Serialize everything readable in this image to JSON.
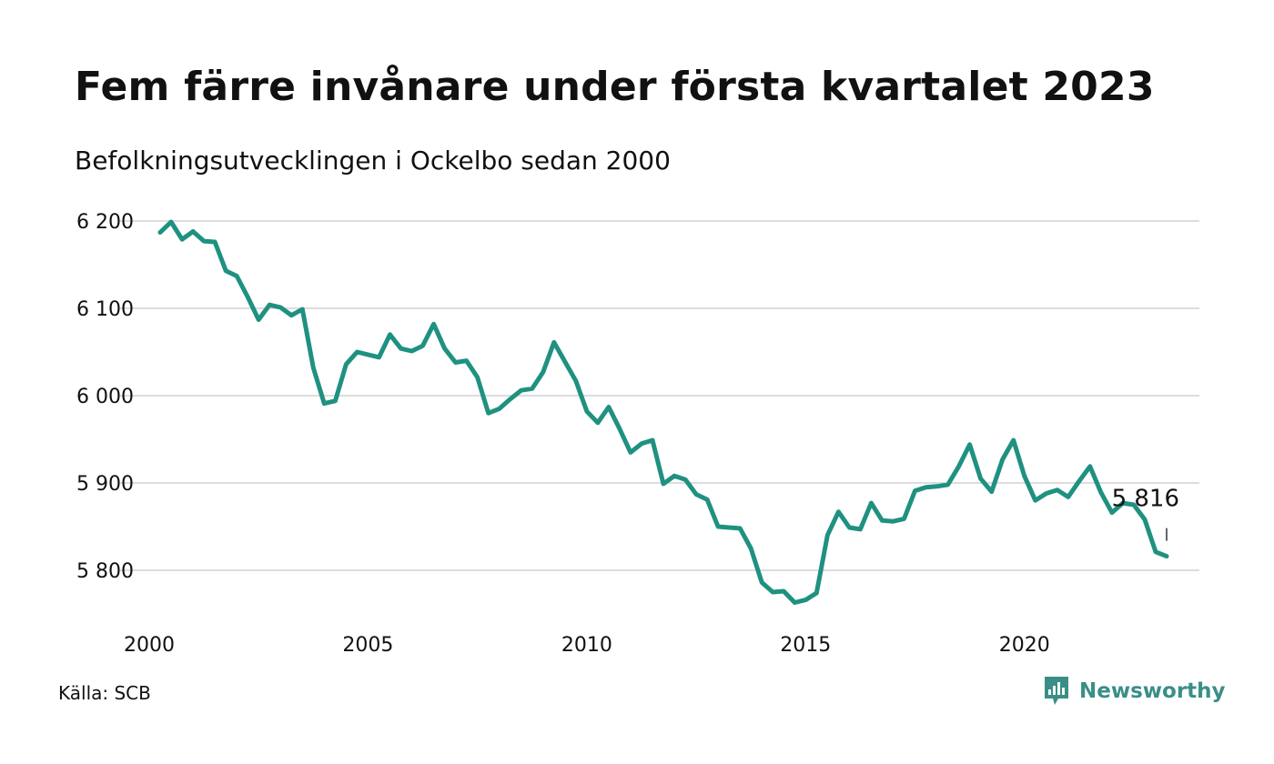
{
  "title": "Fem färre invånare under första kvartalet 2023",
  "subtitle": "Befolkningsutvecklingen i Ockelbo sedan 2000",
  "source": "Källa: SCB",
  "brand": "Newsworthy",
  "colors": {
    "line": "#1f9181",
    "grid": "#dddddd",
    "text": "#111111",
    "brand": "#3a8e88"
  },
  "chart_data": {
    "type": "line",
    "title": "",
    "xlabel": "",
    "ylabel": "",
    "xlim": [
      2000.0,
      2023.25
    ],
    "ylim": [
      5745,
      6205
    ],
    "yticks": [
      5800,
      5900,
      6000,
      6100,
      6200
    ],
    "ytick_labels": [
      "5 800",
      "5 900",
      "6 000",
      "6 100",
      "6 200"
    ],
    "xticks": [
      2000,
      2005,
      2010,
      2015,
      2020
    ],
    "xtick_labels": [
      "2000",
      "2005",
      "2010",
      "2015",
      "2020"
    ],
    "grid": true,
    "legend": "none",
    "last_label": "5 816",
    "series": [
      {
        "x_start": 2000.25,
        "x_step": 0.25,
        "values": [
          6187,
          6199,
          6179,
          6188,
          6177,
          6176,
          6143,
          6137,
          6113,
          6087,
          6104,
          6101,
          6092,
          6099,
          6032,
          5991,
          5994,
          6036,
          6050,
          6047,
          6044,
          6070,
          6054,
          6051,
          6057,
          6082,
          6054,
          6038,
          6040,
          6021,
          5980,
          5985,
          5996,
          6006,
          6008,
          6027,
          6061,
          6039,
          6017,
          5982,
          5969,
          5987,
          5962,
          5935,
          5945,
          5949,
          5899,
          5908,
          5904,
          5887,
          5881,
          5850,
          5849,
          5848,
          5825,
          5786,
          5775,
          5776,
          5763,
          5766,
          5774,
          5840,
          5867,
          5849,
          5847,
          5877,
          5857,
          5856,
          5859,
          5891,
          5895,
          5896,
          5898,
          5919,
          5944,
          5905,
          5890,
          5927,
          5949,
          5908,
          5880,
          5888,
          5892,
          5884,
          5902,
          5919,
          5889,
          5866,
          5877,
          5875,
          5858,
          5821,
          5816
        ]
      }
    ]
  }
}
